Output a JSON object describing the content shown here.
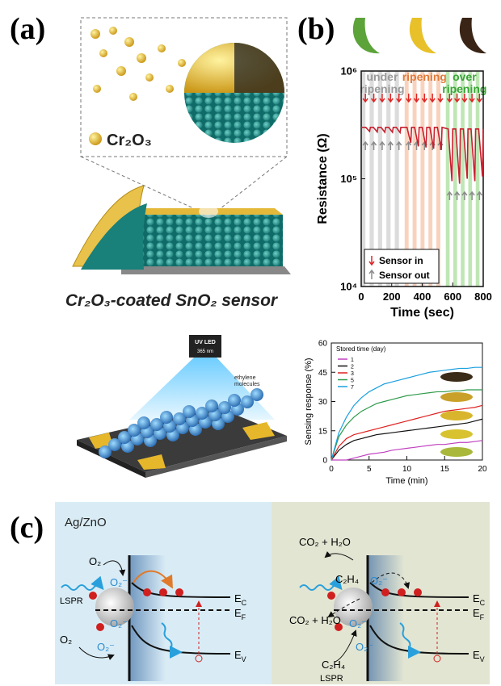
{
  "panel_labels": [
    "(a)",
    "(b)",
    "(c)"
  ],
  "panel_a": {
    "dopant": "Cr₂O₃",
    "caption": "Cr₂O₃-coated SnO₂ sensor",
    "uv_led": "UV LED",
    "wavelength": "365 nm",
    "molecules": [
      "ethylene",
      "molecules"
    ]
  },
  "panel_c": {
    "left": {
      "title": "Ag/ZnO",
      "labels": [
        "O₂",
        "O₂⁻",
        "O₂⁻",
        "LSPR",
        "O₂",
        "O₂⁻"
      ]
    },
    "right": {
      "labels": [
        "CO₂ + H₂O",
        "C₂H₄",
        "O₂⁻",
        "CO₂ + H₂O",
        "O₂⁻",
        "O₂⁻",
        "C₂H₄",
        "LSPR"
      ]
    },
    "levels": [
      {
        "main": "E",
        "sub": "C"
      },
      {
        "main": "E",
        "sub": "F"
      },
      {
        "main": "E",
        "sub": "V"
      }
    ]
  },
  "chart_data": [
    {
      "type": "line",
      "xlabel": "Time (sec)",
      "ylabel": "Resistance (Ω)",
      "xlim": [
        0,
        800
      ],
      "xticks": [
        0,
        200,
        400,
        600,
        800
      ],
      "ylim": [
        10000,
        1000000
      ],
      "log_y": true,
      "yticks": [
        {
          "value": 10000,
          "label": "10⁴"
        },
        {
          "value": 100000,
          "label": "10⁵"
        },
        {
          "value": 1000000,
          "label": "10⁶"
        }
      ],
      "regions": [
        {
          "label": [
            "under",
            "ripening"
          ],
          "range": [
            0,
            275
          ],
          "color": "#dcdcdc",
          "text_color": "#9a9a9a"
        },
        {
          "label": [
            "ripening"
          ],
          "range": [
            285,
            545
          ],
          "color": "#f9d2bd",
          "text_color": "#e07a3a"
        },
        {
          "label": [
            "over",
            "ripening"
          ],
          "range": [
            555,
            800
          ],
          "color": "#bfe6b5",
          "text_color": "#38a535"
        }
      ],
      "legend": [
        {
          "label": "Sensor in",
          "color": "#e02525"
        },
        {
          "label": "Sensor out",
          "color": "#8c8c8c"
        }
      ],
      "legend_position": "lower left",
      "series": [
        {
          "color": "#c8202e",
          "x": [
            0,
            30,
            55,
            60,
            80,
            105,
            110,
            130,
            155,
            160,
            180,
            205,
            210,
            230,
            255,
            260,
            300,
            325,
            330,
            350,
            375,
            380,
            400,
            425,
            430,
            450,
            475,
            480,
            500,
            525,
            530,
            570,
            595,
            600,
            620,
            645,
            650,
            670,
            695,
            700,
            720,
            745,
            750,
            770,
            795,
            800
          ],
          "values": [
            300000,
            300000,
            275000,
            300000,
            300000,
            272000,
            300000,
            300000,
            270000,
            300000,
            300000,
            270000,
            300000,
            300000,
            268000,
            300000,
            300000,
            215000,
            300000,
            300000,
            200000,
            300000,
            300000,
            195000,
            300000,
            300000,
            190000,
            300000,
            300000,
            185000,
            300000,
            290000,
            95000,
            290000,
            290000,
            90000,
            290000,
            290000,
            100000,
            290000,
            290000,
            95000,
            290000,
            290000,
            105000,
            290000
          ]
        }
      ]
    },
    {
      "type": "line",
      "xlabel": "Time (min)",
      "ylabel": "Sensing response (%)",
      "xlim": [
        0,
        20
      ],
      "xticks": [
        0,
        5,
        10,
        15,
        20
      ],
      "ylim": [
        0,
        60
      ],
      "yticks": [
        0,
        15,
        30,
        45,
        60
      ],
      "legend_title": "Stored time (day)",
      "legend_position": "upper left",
      "x": [
        0,
        1,
        2,
        3,
        4,
        5,
        6,
        7,
        8,
        9,
        10,
        11,
        12,
        13,
        14,
        15,
        16,
        17,
        18,
        19,
        20
      ],
      "series": [
        {
          "name": "1",
          "color": "#c040c0",
          "values": [
            0,
            0,
            0,
            1,
            2,
            3,
            3.5,
            4,
            5,
            5.5,
            6,
            6.5,
            7,
            7.5,
            8,
            8,
            8.5,
            9,
            9,
            9.5,
            10
          ]
        },
        {
          "name": "2",
          "color": "#111111",
          "values": [
            0,
            5,
            8,
            10,
            11,
            12,
            13,
            13.5,
            14,
            14.5,
            15,
            15.5,
            16,
            16.5,
            17,
            17.5,
            18,
            18.5,
            19,
            20,
            21
          ]
        },
        {
          "name": "3",
          "color": "#e02020",
          "values": [
            0,
            7,
            11,
            13,
            14,
            15,
            16,
            17,
            18,
            19,
            20,
            21,
            22,
            23,
            24,
            25,
            25.5,
            26,
            26.5,
            27,
            28
          ]
        },
        {
          "name": "5",
          "color": "#2e9a4a",
          "values": [
            0,
            12,
            18,
            22,
            25,
            27,
            29,
            30,
            31,
            32,
            33,
            33.5,
            34,
            34.5,
            35,
            35,
            35.5,
            35.5,
            36,
            36,
            36
          ]
        },
        {
          "name": "7",
          "color": "#1aa0e0",
          "values": [
            0,
            14,
            22,
            28,
            32,
            35,
            37,
            39,
            40,
            41,
            42,
            43,
            44,
            45,
            45.5,
            46,
            46.5,
            47,
            47,
            47.5,
            47.5
          ]
        }
      ]
    }
  ]
}
